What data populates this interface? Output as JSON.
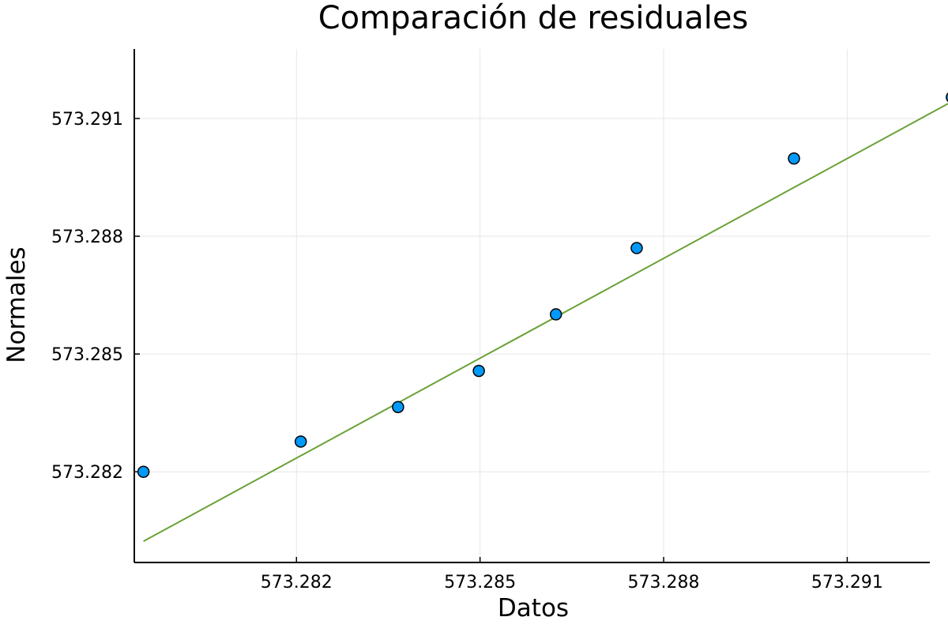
{
  "chart_data": {
    "type": "scatter",
    "title": "Comparación de residuales",
    "xlabel": "Datos",
    "ylabel": "Normales",
    "xlim": [
      573.27935,
      573.29235
    ],
    "ylim": [
      573.27969,
      573.29277
    ],
    "xticks": [
      573.282,
      573.285,
      573.288,
      573.291
    ],
    "xtick_labels": [
      "573.282",
      "573.285",
      "573.288",
      "573.291"
    ],
    "yticks": [
      573.282,
      573.285,
      573.288,
      573.291
    ],
    "ytick_labels": [
      "573.282",
      "573.285",
      "573.288",
      "573.291"
    ],
    "grid": true,
    "legend": "none",
    "series": [
      {
        "type": "scatter",
        "color": "#009AFA",
        "x": [
          573.2795,
          573.28207,
          573.28366,
          573.28498,
          573.28624,
          573.28756,
          573.29013,
          573.29271
        ],
        "y": [
          573.282,
          573.28277,
          573.28365,
          573.28457,
          573.28601,
          573.2877,
          573.28998,
          573.29154
        ]
      },
      {
        "type": "line",
        "color": "#6AA136",
        "x": [
          573.2795,
          573.29271
        ],
        "y": [
          573.28023,
          573.29143
        ]
      }
    ]
  }
}
